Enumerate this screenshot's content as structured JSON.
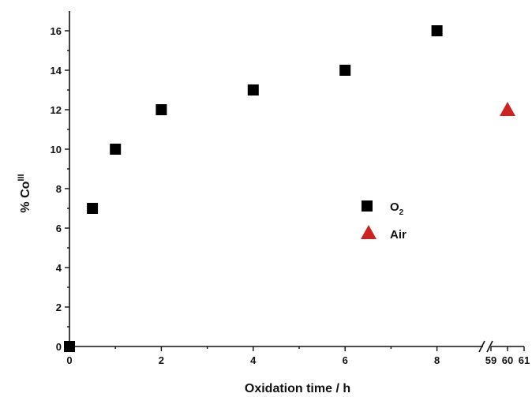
{
  "chart_data": {
    "type": "scatter",
    "xlabel": "Oxidation time / h",
    "ylabel": "% Co",
    "ylabel_superscript": "III",
    "ylim": [
      0,
      17
    ],
    "y_ticks": [
      0,
      2,
      4,
      6,
      8,
      10,
      12,
      14,
      16
    ],
    "x_axis_broken": true,
    "x_segments": [
      {
        "range": [
          0,
          9
        ],
        "ticks": [
          0,
          2,
          4,
          6,
          8
        ]
      },
      {
        "range": [
          59,
          61
        ],
        "ticks": [
          59,
          60,
          61
        ]
      }
    ],
    "grid": false,
    "legend_position": "center-right",
    "series": [
      {
        "name": "O2",
        "marker": "square",
        "color": "#000000",
        "points": [
          {
            "x": 0,
            "y": 0
          },
          {
            "x": 0.5,
            "y": 7
          },
          {
            "x": 1,
            "y": 10
          },
          {
            "x": 2,
            "y": 12
          },
          {
            "x": 4,
            "y": 13
          },
          {
            "x": 6,
            "y": 14
          },
          {
            "x": 8,
            "y": 16
          }
        ]
      },
      {
        "name": "Air",
        "marker": "triangle",
        "color": "#cc2222",
        "points": [
          {
            "x": 60,
            "y": 12
          }
        ]
      }
    ]
  }
}
